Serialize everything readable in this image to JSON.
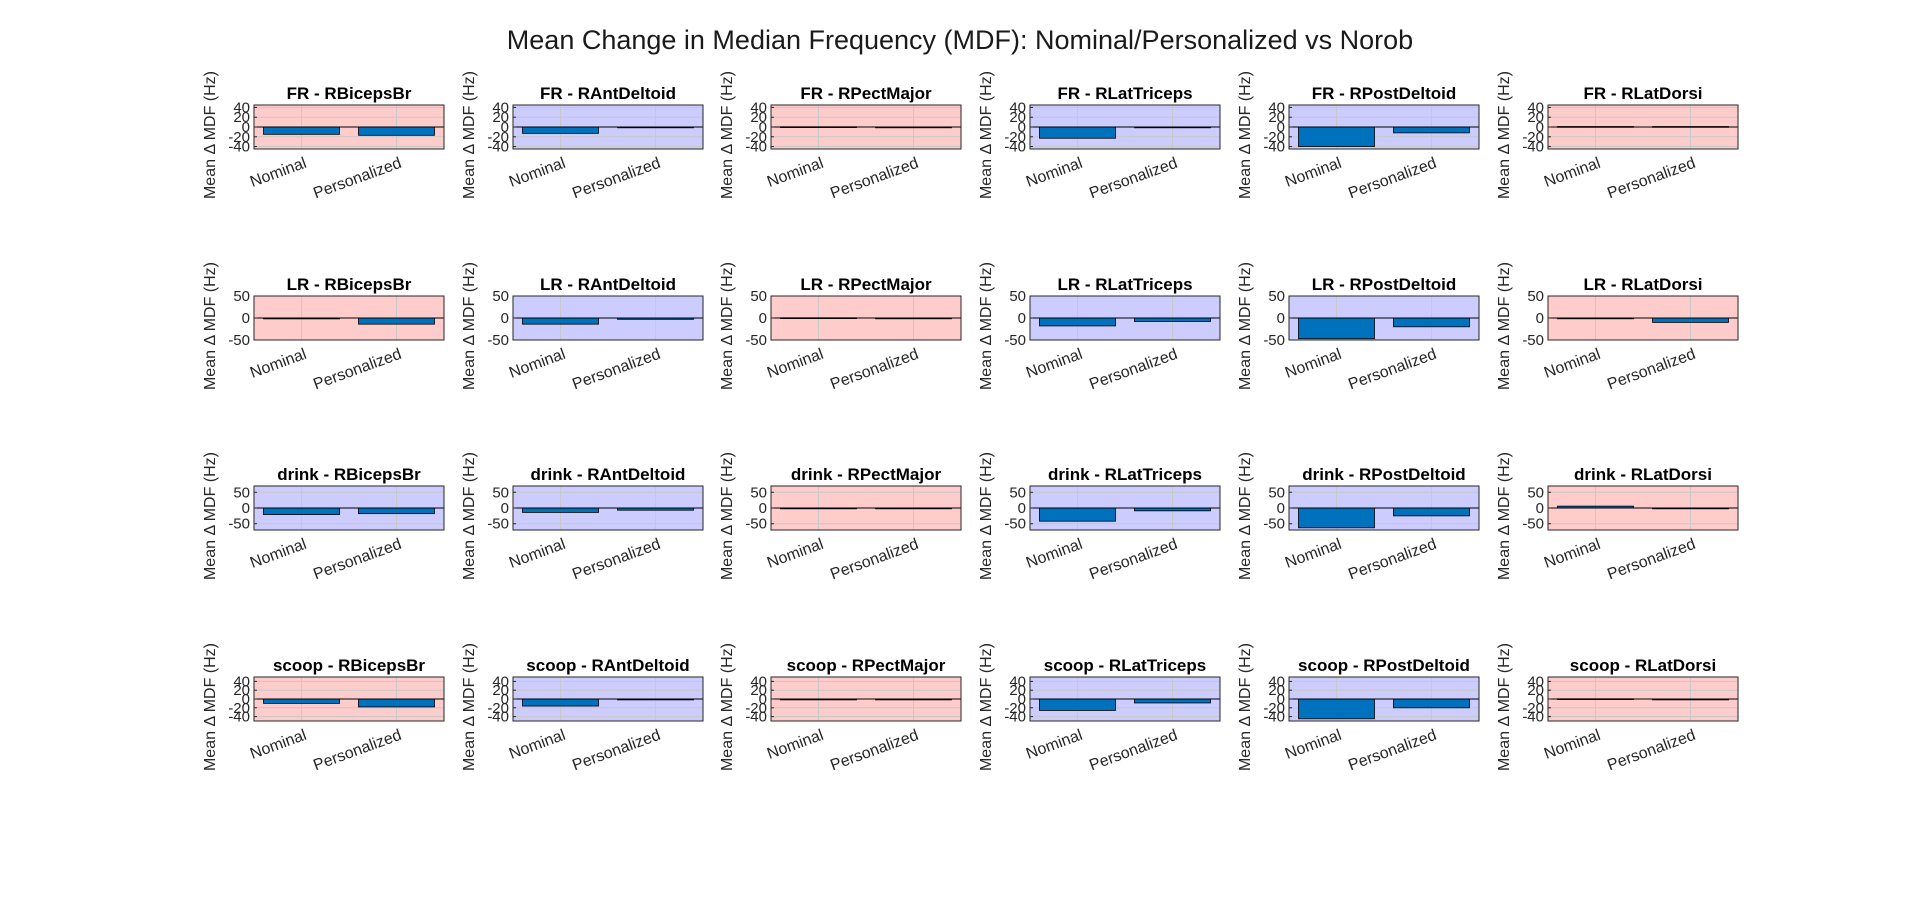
{
  "colors": {
    "bg_red": "#ffcccc",
    "bg_blue": "#ccccff",
    "bar_fill": "#0072bd",
    "bar_stroke": "#000000",
    "axis": "#262626",
    "grid": "#c8c8c8"
  },
  "chart_data": {
    "type": "bar",
    "title": "Mean Change in Median Frequency (MDF): Nominal/Personalized vs Norob",
    "ylabel": "Mean Δ MDF (Hz)",
    "categories": [
      "Nominal",
      "Personalized"
    ],
    "rows": [
      {
        "task": "FR",
        "ylim": [
          -45,
          45
        ],
        "yticks": [
          -40,
          -20,
          0,
          20,
          40
        ],
        "panels": [
          {
            "title": "FR - RBicepsBr",
            "background": "red",
            "values": [
              -15,
              -17
            ]
          },
          {
            "title": "FR - RAntDeltoid",
            "background": "blue",
            "values": [
              -13,
              -1
            ]
          },
          {
            "title": "FR - RPectMajor",
            "background": "red",
            "values": [
              0.5,
              -0.5
            ]
          },
          {
            "title": "FR - RLatTriceps",
            "background": "blue",
            "values": [
              -23,
              -1
            ]
          },
          {
            "title": "FR - RPostDeltoid",
            "background": "blue",
            "values": [
              -40,
              -12
            ]
          },
          {
            "title": "FR - RLatDorsi",
            "background": "red",
            "values": [
              1,
              1
            ]
          }
        ]
      },
      {
        "task": "LR",
        "ylim": [
          -50,
          50
        ],
        "yticks": [
          -50,
          0,
          50
        ],
        "panels": [
          {
            "title": "LR - RBicepsBr",
            "background": "red",
            "values": [
              -2,
              -14
            ]
          },
          {
            "title": "LR - RAntDeltoid",
            "background": "blue",
            "values": [
              -14,
              -3
            ]
          },
          {
            "title": "LR - RPectMajor",
            "background": "red",
            "values": [
              0.5,
              0
            ]
          },
          {
            "title": "LR - RLatTriceps",
            "background": "blue",
            "values": [
              -18,
              -8
            ]
          },
          {
            "title": "LR - RPostDeltoid",
            "background": "blue",
            "values": [
              -47,
              -20
            ]
          },
          {
            "title": "LR - RLatDorsi",
            "background": "red",
            "values": [
              0,
              -10
            ]
          }
        ]
      },
      {
        "task": "drink",
        "ylim": [
          -70,
          70
        ],
        "yticks": [
          -50,
          0,
          50
        ],
        "panels": [
          {
            "title": "drink - RBicepsBr",
            "background": "blue",
            "values": [
              -21,
              -18
            ]
          },
          {
            "title": "drink - RAntDeltoid",
            "background": "blue",
            "values": [
              -14,
              -7
            ]
          },
          {
            "title": "drink - RPectMajor",
            "background": "red",
            "values": [
              0,
              -0.5
            ]
          },
          {
            "title": "drink - RLatTriceps",
            "background": "blue",
            "values": [
              -42,
              -9
            ]
          },
          {
            "title": "drink - RPostDeltoid",
            "background": "blue",
            "values": [
              -63,
              -25
            ]
          },
          {
            "title": "drink - RLatDorsi",
            "background": "red",
            "values": [
              6,
              -2
            ]
          }
        ]
      },
      {
        "task": "scoop",
        "ylim": [
          -50,
          50
        ],
        "yticks": [
          -40,
          -20,
          0,
          20,
          40
        ],
        "panels": [
          {
            "title": "scoop - RBicepsBr",
            "background": "red",
            "values": [
              -10,
              -18
            ]
          },
          {
            "title": "scoop - RAntDeltoid",
            "background": "blue",
            "values": [
              -16,
              -2
            ]
          },
          {
            "title": "scoop - RPectMajor",
            "background": "red",
            "values": [
              -2,
              -2
            ]
          },
          {
            "title": "scoop - RLatTriceps",
            "background": "blue",
            "values": [
              -26,
              -9
            ]
          },
          {
            "title": "scoop - RPostDeltoid",
            "background": "blue",
            "values": [
              -45,
              -20
            ]
          },
          {
            "title": "scoop - RLatDorsi",
            "background": "red",
            "values": [
              0.5,
              -2
            ]
          }
        ]
      }
    ]
  }
}
